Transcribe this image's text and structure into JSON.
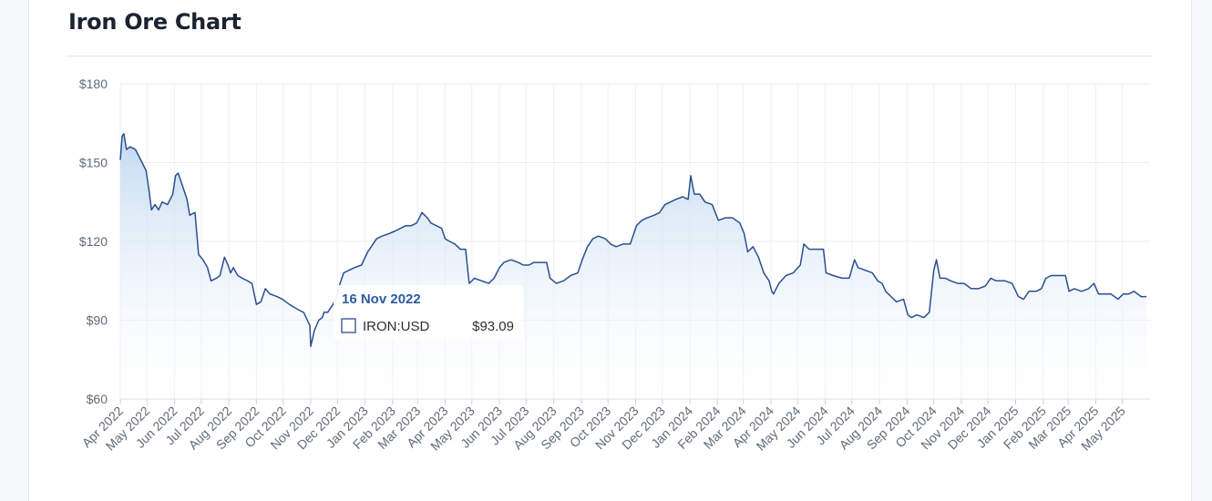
{
  "title": "Iron Ore Chart",
  "chart_data": {
    "type": "area",
    "series": [
      {
        "name": "IRON:USD",
        "color": "#2b4f8f"
      }
    ],
    "ylim": [
      60,
      180
    ],
    "y_ticks": [
      60,
      90,
      120,
      150,
      180
    ],
    "y_tick_labels": [
      "$60",
      "$90",
      "$120",
      "$150",
      "$180"
    ],
    "x_ticks": [
      "Apr 2022",
      "May 2022",
      "Jun 2022",
      "Jul 2022",
      "Aug 2022",
      "Sep 2022",
      "Oct 2022",
      "Nov 2022",
      "Dec 2022",
      "Jan 2023",
      "Feb 2023",
      "Mar 2023",
      "Apr 2023",
      "May 2023",
      "Jun 2023",
      "Jul 2023",
      "Aug 2023",
      "Sep 2023",
      "Oct 2023",
      "Nov 2023",
      "Dec 2023",
      "Jan 2024",
      "Feb 2024",
      "Mar 2024",
      "Apr 2024",
      "May 2024",
      "Jun 2024",
      "Jul 2024",
      "Aug 2024",
      "Sep 2024",
      "Oct 2024",
      "Nov 2024",
      "Dec 2024",
      "Jan 2025",
      "Feb 2025",
      "Mar 2025",
      "Apr 2025",
      "May 2025"
    ],
    "grid": true,
    "points": [
      [
        "2022-04-01",
        151
      ],
      [
        "2022-04-03",
        160
      ],
      [
        "2022-04-05",
        161
      ],
      [
        "2022-04-08",
        155
      ],
      [
        "2022-04-12",
        156
      ],
      [
        "2022-04-18",
        155
      ],
      [
        "2022-04-24",
        151
      ],
      [
        "2022-04-30",
        147
      ],
      [
        "2022-05-03",
        140
      ],
      [
        "2022-05-06",
        132
      ],
      [
        "2022-05-10",
        134
      ],
      [
        "2022-05-14",
        132
      ],
      [
        "2022-05-18",
        135
      ],
      [
        "2022-05-24",
        134
      ],
      [
        "2022-05-30",
        138
      ],
      [
        "2022-06-02",
        145
      ],
      [
        "2022-06-05",
        146
      ],
      [
        "2022-06-10",
        141
      ],
      [
        "2022-06-15",
        136
      ],
      [
        "2022-06-18",
        130
      ],
      [
        "2022-06-24",
        131
      ],
      [
        "2022-06-28",
        115
      ],
      [
        "2022-07-03",
        113
      ],
      [
        "2022-07-08",
        110
      ],
      [
        "2022-07-12",
        105
      ],
      [
        "2022-07-18",
        106
      ],
      [
        "2022-07-22",
        107
      ],
      [
        "2022-07-27",
        114
      ],
      [
        "2022-07-31",
        111
      ],
      [
        "2022-08-03",
        108
      ],
      [
        "2022-08-06",
        110
      ],
      [
        "2022-08-11",
        107
      ],
      [
        "2022-08-16",
        106
      ],
      [
        "2022-08-22",
        105
      ],
      [
        "2022-08-27",
        104
      ],
      [
        "2022-09-01",
        96
      ],
      [
        "2022-09-06",
        97
      ],
      [
        "2022-09-11",
        102
      ],
      [
        "2022-09-16",
        100
      ],
      [
        "2022-09-24",
        99
      ],
      [
        "2022-09-30",
        98
      ],
      [
        "2022-10-04",
        97
      ],
      [
        "2022-10-08",
        96
      ],
      [
        "2022-10-13",
        95
      ],
      [
        "2022-10-18",
        94
      ],
      [
        "2022-10-24",
        93
      ],
      [
        "2022-10-31",
        88
      ],
      [
        "2022-11-01",
        80
      ],
      [
        "2022-11-05",
        86
      ],
      [
        "2022-11-10",
        90
      ],
      [
        "2022-11-14",
        91
      ],
      [
        "2022-11-16",
        93.09
      ],
      [
        "2022-11-20",
        93
      ],
      [
        "2022-11-26",
        96
      ],
      [
        "2022-11-30",
        99
      ],
      [
        "2022-12-04",
        104
      ],
      [
        "2022-12-08",
        108
      ],
      [
        "2022-12-14",
        109
      ],
      [
        "2022-12-20",
        110
      ],
      [
        "2022-12-28",
        111
      ],
      [
        "2023-01-04",
        116
      ],
      [
        "2023-01-08",
        118
      ],
      [
        "2023-01-14",
        121
      ],
      [
        "2023-01-20",
        122
      ],
      [
        "2023-01-28",
        123
      ],
      [
        "2023-02-04",
        124
      ],
      [
        "2023-02-10",
        125
      ],
      [
        "2023-02-16",
        126
      ],
      [
        "2023-02-22",
        126
      ],
      [
        "2023-02-28",
        127
      ],
      [
        "2023-03-06",
        131
      ],
      [
        "2023-03-12",
        129
      ],
      [
        "2023-03-16",
        127
      ],
      [
        "2023-03-22",
        126
      ],
      [
        "2023-03-28",
        125
      ],
      [
        "2023-04-01",
        121
      ],
      [
        "2023-04-06",
        120
      ],
      [
        "2023-04-12",
        119
      ],
      [
        "2023-04-18",
        117
      ],
      [
        "2023-04-24",
        117
      ],
      [
        "2023-04-28",
        104
      ],
      [
        "2023-05-04",
        106
      ],
      [
        "2023-05-12",
        105
      ],
      [
        "2023-05-20",
        104
      ],
      [
        "2023-05-26",
        106
      ],
      [
        "2023-06-01",
        110
      ],
      [
        "2023-06-06",
        112
      ],
      [
        "2023-06-14",
        113
      ],
      [
        "2023-06-22",
        112
      ],
      [
        "2023-06-28",
        111
      ],
      [
        "2023-07-04",
        111
      ],
      [
        "2023-07-10",
        112
      ],
      [
        "2023-07-18",
        112
      ],
      [
        "2023-07-24",
        112
      ],
      [
        "2023-07-28",
        106
      ],
      [
        "2023-08-04",
        104
      ],
      [
        "2023-08-12",
        105
      ],
      [
        "2023-08-20",
        107
      ],
      [
        "2023-08-28",
        108
      ],
      [
        "2023-09-02",
        113
      ],
      [
        "2023-09-08",
        118
      ],
      [
        "2023-09-14",
        121
      ],
      [
        "2023-09-20",
        122
      ],
      [
        "2023-09-28",
        121
      ],
      [
        "2023-10-04",
        119
      ],
      [
        "2023-10-10",
        118
      ],
      [
        "2023-10-18",
        119
      ],
      [
        "2023-10-26",
        119
      ],
      [
        "2023-11-02",
        126
      ],
      [
        "2023-11-08",
        128
      ],
      [
        "2023-11-14",
        129
      ],
      [
        "2023-11-22",
        130
      ],
      [
        "2023-11-28",
        131
      ],
      [
        "2023-12-04",
        134
      ],
      [
        "2023-12-10",
        135
      ],
      [
        "2023-12-16",
        136
      ],
      [
        "2023-12-24",
        137
      ],
      [
        "2023-12-30",
        136
      ],
      [
        "2024-01-02",
        145
      ],
      [
        "2024-01-06",
        138
      ],
      [
        "2024-01-12",
        138
      ],
      [
        "2024-01-18",
        135
      ],
      [
        "2024-01-26",
        134
      ],
      [
        "2024-02-02",
        128
      ],
      [
        "2024-02-10",
        129
      ],
      [
        "2024-02-18",
        129
      ],
      [
        "2024-02-26",
        127
      ],
      [
        "2024-03-02",
        123
      ],
      [
        "2024-03-06",
        116
      ],
      [
        "2024-03-12",
        118
      ],
      [
        "2024-03-18",
        114
      ],
      [
        "2024-03-24",
        108
      ],
      [
        "2024-03-30",
        105
      ],
      [
        "2024-04-02",
        101
      ],
      [
        "2024-04-04",
        100
      ],
      [
        "2024-04-10",
        104
      ],
      [
        "2024-04-18",
        107
      ],
      [
        "2024-04-26",
        108
      ],
      [
        "2024-05-04",
        111
      ],
      [
        "2024-05-08",
        119
      ],
      [
        "2024-05-14",
        117
      ],
      [
        "2024-05-22",
        117
      ],
      [
        "2024-05-30",
        117
      ],
      [
        "2024-06-02",
        108
      ],
      [
        "2024-06-10",
        107
      ],
      [
        "2024-06-20",
        106
      ],
      [
        "2024-06-28",
        106
      ],
      [
        "2024-07-04",
        113
      ],
      [
        "2024-07-08",
        110
      ],
      [
        "2024-07-16",
        109
      ],
      [
        "2024-07-24",
        108
      ],
      [
        "2024-07-30",
        105
      ],
      [
        "2024-08-04",
        104
      ],
      [
        "2024-08-08",
        101
      ],
      [
        "2024-08-14",
        99
      ],
      [
        "2024-08-20",
        97
      ],
      [
        "2024-08-28",
        98
      ],
      [
        "2024-09-02",
        92
      ],
      [
        "2024-09-06",
        91
      ],
      [
        "2024-09-12",
        92
      ],
      [
        "2024-09-20",
        91
      ],
      [
        "2024-09-26",
        93
      ],
      [
        "2024-10-01",
        109
      ],
      [
        "2024-10-04",
        113
      ],
      [
        "2024-10-08",
        106
      ],
      [
        "2024-10-14",
        106
      ],
      [
        "2024-10-20",
        105
      ],
      [
        "2024-10-28",
        104
      ],
      [
        "2024-11-04",
        104
      ],
      [
        "2024-11-12",
        102
      ],
      [
        "2024-11-20",
        102
      ],
      [
        "2024-11-28",
        103
      ],
      [
        "2024-12-04",
        106
      ],
      [
        "2024-12-10",
        105
      ],
      [
        "2024-12-20",
        105
      ],
      [
        "2024-12-28",
        104
      ],
      [
        "2025-01-04",
        99
      ],
      [
        "2025-01-10",
        98
      ],
      [
        "2025-01-16",
        101
      ],
      [
        "2025-01-24",
        101
      ],
      [
        "2025-01-30",
        102
      ],
      [
        "2025-02-04",
        106
      ],
      [
        "2025-02-10",
        107
      ],
      [
        "2025-02-18",
        107
      ],
      [
        "2025-02-26",
        107
      ],
      [
        "2025-03-02",
        101
      ],
      [
        "2025-03-08",
        102
      ],
      [
        "2025-03-16",
        101
      ],
      [
        "2025-03-24",
        102
      ],
      [
        "2025-03-30",
        104
      ],
      [
        "2025-04-04",
        100
      ],
      [
        "2025-04-10",
        100
      ],
      [
        "2025-04-18",
        100
      ],
      [
        "2025-04-26",
        98
      ],
      [
        "2025-05-02",
        100
      ],
      [
        "2025-05-08",
        100
      ],
      [
        "2025-05-14",
        101
      ],
      [
        "2025-05-22",
        99
      ],
      [
        "2025-05-28",
        99
      ]
    ],
    "tooltip": {
      "date": "16 Nov 2022",
      "series_label": "IRON:USD",
      "value": "$93.09"
    }
  }
}
